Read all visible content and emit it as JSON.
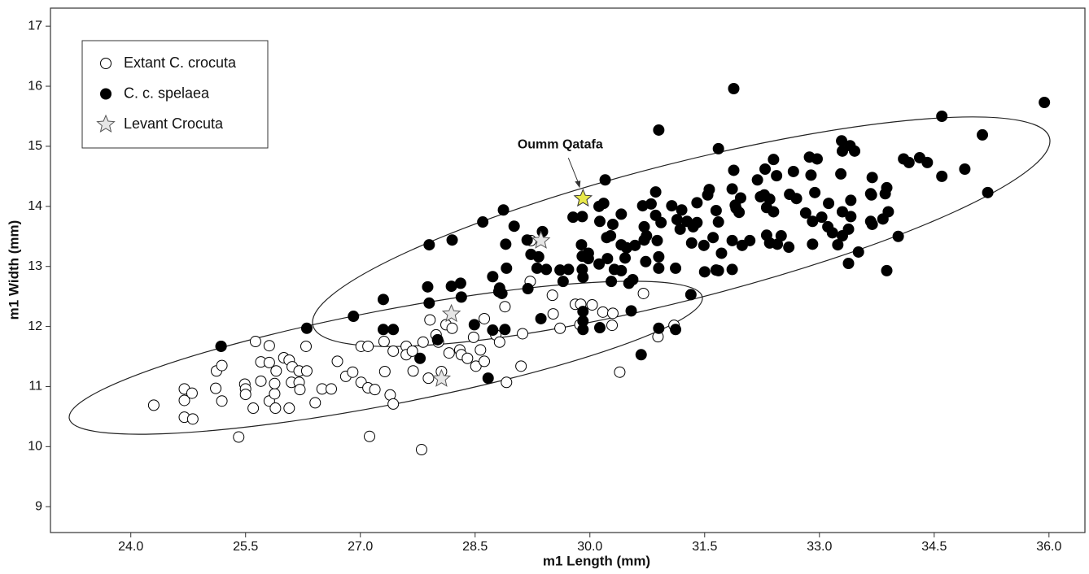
{
  "chart_data": {
    "type": "scatter",
    "xlabel": "m1 Length (mm)",
    "ylabel": "m1 Width (mm)",
    "xlim": [
      22.95,
      36.47
    ],
    "ylim": [
      8.57,
      17.3
    ],
    "xticks": [
      {
        "value": 24,
        "label": "24.0"
      },
      25.5,
      {
        "value": 27,
        "label": "27.0"
      },
      28.5,
      {
        "value": 30,
        "label": "30.0"
      },
      31.5,
      {
        "value": 33,
        "label": "33.0"
      },
      34.5,
      {
        "value": 36,
        "label": "36.0"
      }
    ],
    "yticks": [
      9,
      10,
      11,
      12,
      13,
      14,
      15,
      16,
      17
    ],
    "legend": "upper left",
    "series": [
      {
        "name": "Extant C. crocuta",
        "marker": "o",
        "color": "#ffffff",
        "edgecolor": "#000000",
        "x": [
          24.3,
          24.7,
          24.7,
          24.7,
          24.8,
          24.81,
          25.12,
          25.11,
          25.19,
          25.19,
          25.18,
          25.41,
          25.49,
          25.5,
          25.5,
          25.6,
          25.63,
          25.7,
          25.7,
          25.81,
          25.81,
          25.81,
          25.88,
          25.88,
          25.89,
          25.9,
          26.0,
          26.07,
          26.07,
          26.1,
          26.11,
          26.2,
          26.2,
          26.21,
          26.29,
          26.3,
          26.41,
          26.5,
          26.62,
          26.7,
          26.81,
          26.9,
          27.01,
          27.1,
          27.01,
          27.1,
          27.19,
          27.12,
          27.31,
          27.32,
          27.39,
          27.43,
          27.43,
          27.6,
          27.6,
          27.69,
          27.82,
          27.68,
          27.8,
          27.89,
          27.99,
          28.02,
          28.06,
          27.91,
          28.12,
          28.16,
          28.2,
          28.3,
          28.32,
          28.4,
          28.48,
          28.51,
          28.57,
          28.62,
          28.62,
          28.77,
          28.82,
          28.89,
          28.91,
          29.1,
          29.12,
          29.22,
          29.23,
          29.51,
          29.52,
          29.61,
          29.81,
          29.88,
          29.87,
          30.03,
          30.17,
          30.3,
          30.29,
          30.39,
          30.7,
          30.89,
          31.1
        ],
        "values": [
          10.69,
          10.96,
          10.77,
          10.49,
          10.89,
          10.46,
          11.26,
          10.97,
          11.35,
          10.76,
          11.67,
          10.16,
          11.04,
          10.96,
          10.87,
          10.64,
          11.75,
          11.09,
          11.41,
          11.68,
          11.4,
          10.76,
          10.88,
          11.05,
          10.64,
          11.26,
          11.48,
          11.44,
          10.64,
          11.07,
          11.33,
          11.26,
          11.07,
          10.95,
          11.67,
          11.26,
          10.73,
          10.96,
          10.96,
          11.42,
          11.17,
          11.24,
          11.67,
          11.67,
          11.07,
          10.98,
          10.95,
          10.17,
          11.75,
          11.25,
          10.86,
          10.71,
          11.59,
          11.67,
          11.53,
          11.26,
          11.74,
          11.59,
          9.95,
          11.14,
          11.86,
          11.74,
          11.25,
          12.11,
          12.03,
          11.56,
          11.97,
          11.61,
          11.53,
          11.47,
          11.82,
          11.34,
          11.61,
          12.13,
          11.42,
          11.86,
          11.74,
          12.33,
          11.07,
          11.34,
          11.88,
          12.75,
          13.43,
          12.52,
          12.21,
          11.97,
          12.37,
          12.37,
          12.03,
          12.36,
          12.24,
          12.22,
          12.02,
          11.24,
          12.55,
          11.83,
          12.02
        ]
      },
      {
        "name": "C. c. spelaea",
        "marker": "o",
        "color": "#000000",
        "edgecolor": "#000000",
        "x": [
          25.18,
          26.3,
          26.91,
          27.3,
          27.3,
          27.43,
          27.78,
          27.88,
          27.9,
          27.9,
          28.01,
          28.2,
          28.19,
          28.31,
          28.32,
          28.49,
          28.6,
          28.67,
          28.73,
          28.73,
          28.81,
          28.82,
          28.85,
          28.87,
          28.9,
          28.91,
          28.89,
          29.01,
          29.18,
          29.19,
          29.23,
          29.31,
          29.33,
          29.36,
          29.38,
          29.43,
          29.61,
          29.65,
          29.72,
          29.78,
          29.89,
          29.9,
          29.9,
          29.9,
          29.91,
          29.91,
          29.91,
          29.91,
          29.98,
          29.98,
          30.12,
          30.13,
          30.12,
          30.13,
          30.18,
          30.2,
          30.22,
          30.23,
          30.27,
          30.28,
          30.3,
          30.32,
          30.41,
          30.41,
          30.41,
          30.46,
          30.48,
          30.51,
          30.54,
          30.56,
          30.59,
          30.67,
          30.69,
          30.71,
          30.73,
          30.71,
          30.74,
          30.8,
          30.86,
          30.86,
          30.88,
          30.9,
          30.9,
          30.9,
          30.9,
          30.93,
          31.07,
          31.12,
          31.12,
          31.14,
          31.18,
          31.2,
          31.27,
          31.32,
          31.33,
          31.35,
          31.4,
          31.4,
          31.49,
          31.5,
          31.54,
          31.56,
          31.61,
          31.65,
          31.65,
          31.68,
          31.68,
          31.68,
          31.72,
          31.86,
          31.86,
          31.86,
          31.88,
          31.88,
          31.9,
          31.91,
          31.95,
          31.97,
          31.99,
          32.09,
          32.19,
          32.23,
          32.28,
          32.29,
          32.31,
          32.31,
          32.35,
          32.35,
          32.4,
          32.4,
          32.44,
          32.45,
          32.5,
          32.6,
          32.61,
          32.66,
          32.7,
          32.82,
          32.87,
          32.89,
          32.91,
          32.91,
          32.94,
          32.97,
          33.03,
          33.12,
          33.11,
          33.17,
          33.24,
          33.28,
          33.29,
          33.3,
          33.3,
          33.3,
          33.38,
          33.38,
          33.41,
          33.41,
          33.4,
          33.46,
          33.51,
          33.67,
          33.67,
          33.68,
          33.69,
          33.69,
          33.83,
          33.86,
          33.88,
          33.88,
          33.9,
          34.03,
          34.1,
          34.17,
          34.31,
          34.41,
          34.6,
          34.6,
          34.9,
          35.13,
          35.2,
          35.94
        ],
        "values": [
          11.67,
          11.97,
          12.17,
          12.45,
          11.95,
          11.95,
          11.47,
          12.66,
          13.36,
          12.39,
          11.78,
          13.44,
          12.67,
          12.72,
          12.49,
          12.03,
          13.74,
          11.14,
          11.94,
          12.83,
          12.58,
          12.64,
          12.55,
          13.94,
          13.37,
          12.97,
          11.95,
          13.67,
          13.44,
          12.63,
          13.2,
          12.97,
          13.16,
          12.13,
          13.58,
          12.95,
          12.94,
          12.75,
          12.95,
          13.82,
          13.36,
          13.83,
          13.17,
          12.95,
          12.82,
          12.25,
          12.09,
          11.95,
          13.13,
          13.22,
          13.04,
          13.75,
          14.0,
          11.98,
          14.05,
          14.44,
          13.48,
          13.13,
          13.51,
          12.75,
          13.7,
          12.95,
          13.87,
          13.36,
          12.93,
          13.14,
          13.31,
          12.72,
          12.26,
          12.78,
          13.35,
          11.53,
          14.01,
          13.66,
          13.08,
          13.44,
          13.51,
          14.04,
          14.24,
          13.85,
          13.43,
          13.16,
          12.97,
          15.27,
          11.97,
          13.73,
          14.01,
          12.97,
          11.95,
          13.78,
          13.62,
          13.94,
          13.75,
          12.53,
          13.39,
          13.66,
          14.06,
          13.73,
          13.35,
          12.91,
          14.19,
          14.28,
          13.48,
          12.94,
          13.93,
          12.93,
          14.96,
          13.74,
          13.22,
          14.29,
          13.43,
          12.95,
          15.96,
          14.6,
          14.02,
          13.97,
          13.9,
          14.14,
          13.35,
          13.43,
          14.44,
          14.16,
          14.19,
          14.62,
          13.52,
          13.98,
          14.12,
          13.39,
          14.78,
          13.91,
          14.51,
          13.37,
          13.51,
          13.32,
          14.2,
          14.58,
          14.13,
          13.89,
          14.82,
          14.52,
          13.37,
          13.75,
          14.23,
          14.79,
          13.82,
          14.05,
          13.66,
          13.56,
          13.36,
          14.54,
          15.09,
          13.91,
          14.92,
          13.51,
          13.62,
          13.05,
          14.1,
          13.83,
          15.01,
          14.92,
          13.24,
          14.21,
          13.75,
          14.19,
          13.7,
          14.48,
          13.79,
          14.21,
          14.31,
          12.93,
          13.91,
          13.5,
          14.79,
          14.73,
          14.81,
          14.73,
          15.5,
          14.5,
          14.62,
          15.19,
          14.23,
          15.73
        ]
      },
      {
        "name": "Levant Crocuta",
        "marker": "*",
        "color": "#e6e6e6",
        "edgecolor": "#555555",
        "x": [
          29.36,
          28.19,
          28.06
        ],
        "values": [
          13.43,
          12.21,
          11.13
        ]
      }
    ],
    "annotation": {
      "text": "Oumm Qatafa",
      "x": 29.91,
      "y": 14.13,
      "marker": "*",
      "color": "#e8e84a",
      "edgecolor": "#333333"
    }
  }
}
